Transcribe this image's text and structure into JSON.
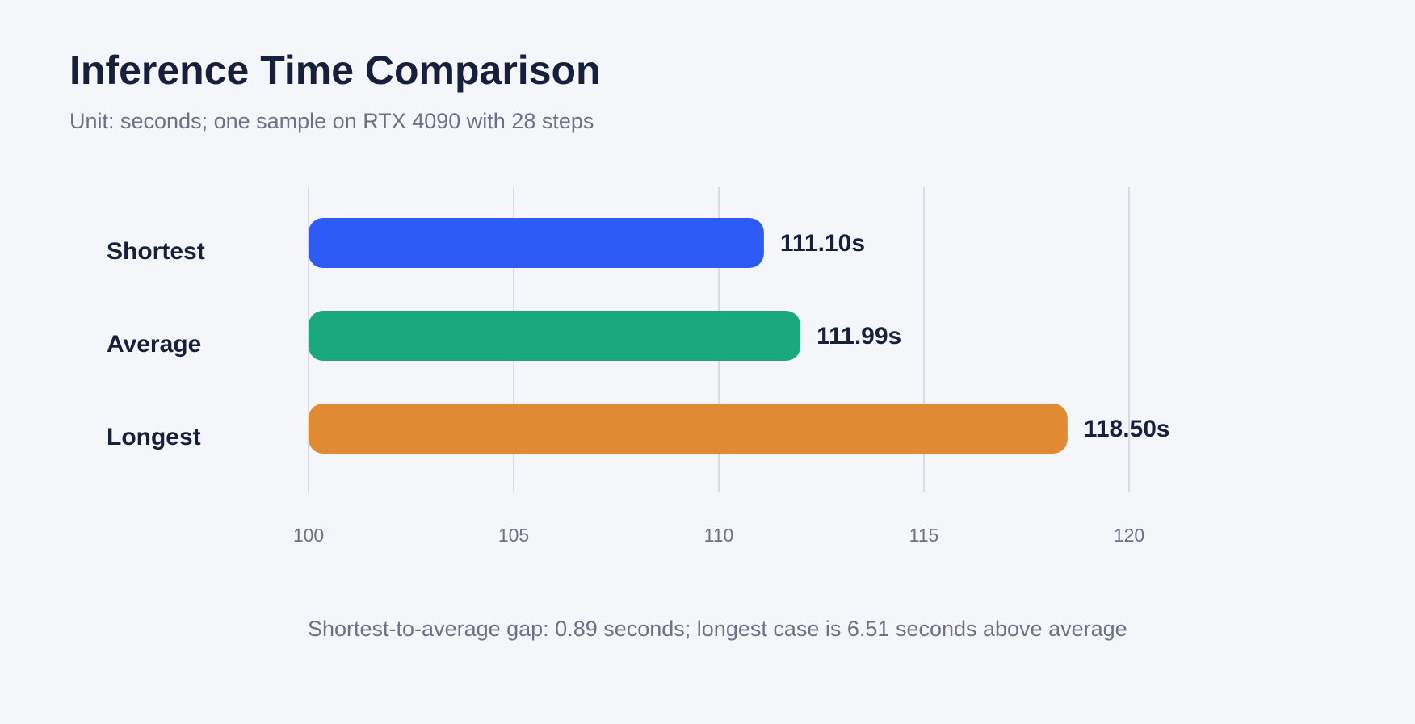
{
  "chart_data": {
    "type": "bar",
    "orientation": "horizontal",
    "title": "Inference Time Comparison",
    "subtitle": "Unit: seconds; one sample on RTX 4090 with 28 steps",
    "categories": [
      "Shortest",
      "Average",
      "Longest"
    ],
    "values": [
      111.1,
      111.99,
      118.5
    ],
    "value_labels": [
      "111.10s",
      "111.99s",
      "118.50s"
    ],
    "colors": [
      "#2f5bf5",
      "#1ba87e",
      "#e08a33"
    ],
    "xlim": [
      100,
      120
    ],
    "xticks": [
      100,
      105,
      110,
      115,
      120
    ],
    "xtick_labels": [
      "100",
      "105",
      "110",
      "115",
      "120"
    ],
    "grid": true,
    "legend": "none",
    "xlabel": "",
    "ylabel": ""
  },
  "footnote": "Shortest-to-average gap: 0.89 seconds; longest case is 6.51 seconds above average"
}
